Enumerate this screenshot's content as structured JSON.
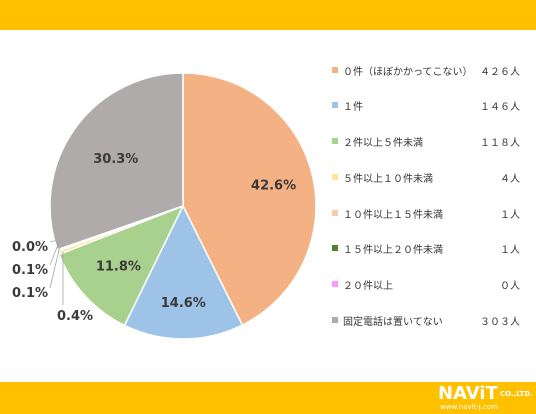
{
  "colors": {
    "band": "#FFC000",
    "label_text": "#3a3a3a"
  },
  "chart_data": {
    "type": "pie",
    "start_angle_deg": 0,
    "direction": "clockwise",
    "legend_position": "right",
    "slices": [
      {
        "label": "０件（ほぼかかってこない）",
        "count": "４２６人",
        "value": 42.6,
        "display": "42.6%",
        "color": "#F4B183"
      },
      {
        "label": "１件",
        "count": "１４６人",
        "value": 14.6,
        "display": "14.6%",
        "color": "#9DC3E6"
      },
      {
        "label": "２件以上５件未満",
        "count": "１１８人",
        "value": 11.8,
        "display": "11.8%",
        "color": "#A9D18E"
      },
      {
        "label": "５件以上１０件未満",
        "count": "４人",
        "value": 0.4,
        "display": "0.4%",
        "color": "#FFE699"
      },
      {
        "label": "１０件以上１５件未満",
        "count": "１人",
        "value": 0.1,
        "display": "0.1%",
        "color": "#F8CBAD"
      },
      {
        "label": "１５件以上２０件未満",
        "count": "１人",
        "value": 0.1,
        "display": "0.1%",
        "color": "#548235"
      },
      {
        "label": "２０件以上",
        "count": "０人",
        "value": 0.0,
        "display": "0.0%",
        "color": "#FF99FF"
      },
      {
        "label": "固定電話は置いてない",
        "count": "３０３人",
        "value": 30.3,
        "display": "30.3%",
        "color": "#AFABAB"
      }
    ]
  },
  "logo": {
    "mark": "NAViT",
    "company": "CO.,LTD.",
    "url": "www.navit-j.com"
  }
}
